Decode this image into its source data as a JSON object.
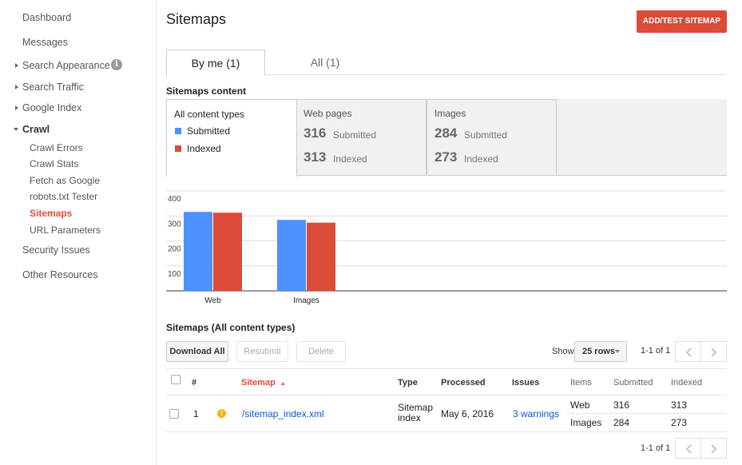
{
  "sidebar": {
    "dashboard": "Dashboard",
    "messages": "Messages",
    "search_appearance": "Search Appearance",
    "search_traffic": "Search Traffic",
    "google_index": "Google Index",
    "crawl": "Crawl",
    "crawl_errors": "Crawl Errors",
    "crawl_stats": "Crawl Stats",
    "fetch_as_google": "Fetch as Google",
    "robots_tester": "robots.txt Tester",
    "sitemaps": "Sitemaps",
    "url_parameters": "URL Parameters",
    "security_issues": "Security Issues",
    "other_resources": "Other Resources",
    "info_icon": "i"
  },
  "header": {
    "title": "Sitemaps",
    "add_button": "ADD/TEST SITEMAP"
  },
  "tabs": {
    "by_me": "By me (1)",
    "all": "All (1)"
  },
  "content_section": {
    "label": "Sitemaps content",
    "all_types": "All content types",
    "legend_submitted": "Submitted",
    "legend_indexed": "Indexed",
    "web": {
      "title": "Web pages",
      "submitted": "316",
      "submitted_label": "Submitted",
      "indexed": "313",
      "indexed_label": "Indexed"
    },
    "images": {
      "title": "Images",
      "submitted": "284",
      "submitted_label": "Submitted",
      "indexed": "273",
      "indexed_label": "Indexed"
    }
  },
  "colors": {
    "submitted": "#4d90fe",
    "indexed": "#dd4b39",
    "accent": "#dd4b39",
    "link": "#1155cc"
  },
  "chart_data": {
    "type": "bar",
    "categories": [
      "Web",
      "Images"
    ],
    "series": [
      {
        "name": "Submitted",
        "values": [
          316,
          284
        ]
      },
      {
        "name": "Indexed",
        "values": [
          313,
          273
        ]
      }
    ],
    "yticks": [
      "400",
      "300",
      "200",
      "100"
    ],
    "ylim": [
      0,
      400
    ],
    "grid": true
  },
  "table_section": {
    "label": "Sitemaps (All content types)",
    "download_all": "Download All",
    "resubmit": "Resubmit",
    "delete": "Delete",
    "show_label": "Show",
    "rows_value": "25 rows",
    "pager_text": "1-1 of 1",
    "columns": {
      "num": "#",
      "sitemap": "Sitemap",
      "sort_arrow": "▲",
      "type": "Type",
      "processed": "Processed",
      "issues": "Issues",
      "items": "Items",
      "submitted": "Submitted",
      "indexed": "Indexed"
    },
    "row": {
      "num": "1",
      "warning_icon": "!",
      "sitemap": "/sitemap_index.xml",
      "type_line1": "Sitemap",
      "type_line2": "index",
      "processed": "May 6, 2016",
      "issues": "3 warnings",
      "items": [
        {
          "name": "Web",
          "submitted": "316",
          "indexed": "313"
        },
        {
          "name": "Images",
          "submitted": "284",
          "indexed": "273"
        }
      ]
    }
  }
}
